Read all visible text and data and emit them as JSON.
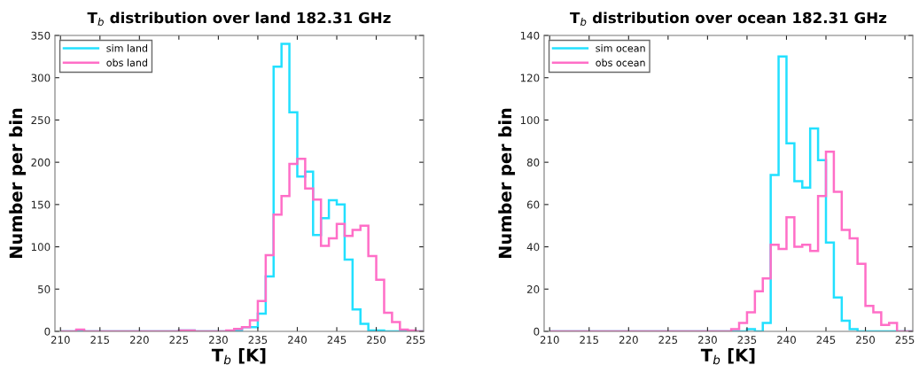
{
  "chart_data": [
    {
      "type": "histogram",
      "title": "T$_{b}$ distribution over land 182.31 GHz",
      "xlabel": "T$_{b}$ [K]",
      "ylabel": "Number per bin",
      "bins": [
        210,
        211,
        212,
        213,
        214,
        215,
        216,
        217,
        218,
        219,
        220,
        221,
        222,
        223,
        224,
        225,
        226,
        227,
        228,
        229,
        230,
        231,
        232,
        233,
        234,
        235,
        236,
        237,
        238,
        239,
        240,
        241,
        242,
        243,
        244,
        245,
        246,
        247,
        248,
        249,
        250,
        251,
        252,
        253,
        254,
        255,
        256
      ],
      "series": [
        {
          "name": "sim land",
          "color": "#22e0ff",
          "values": [
            0,
            0,
            1,
            0,
            0,
            0,
            0,
            0,
            0,
            0,
            0,
            0,
            0,
            0,
            0,
            1,
            1,
            0,
            0,
            0,
            0,
            0,
            1,
            5,
            5,
            21,
            65,
            313,
            340,
            259,
            183,
            189,
            114,
            134,
            155,
            150,
            85,
            26,
            9,
            1,
            1,
            0,
            0,
            0,
            0,
            0
          ]
        },
        {
          "name": "obs land",
          "color": "#ff6ec7",
          "values": [
            0,
            0,
            2,
            0,
            0,
            0,
            0,
            0,
            0,
            0,
            0,
            0,
            0,
            0,
            0,
            1,
            1,
            0,
            0,
            0,
            0,
            1,
            3,
            5,
            13,
            36,
            90,
            138,
            160,
            198,
            204,
            169,
            156,
            101,
            110,
            127,
            113,
            120,
            125,
            89,
            61,
            22,
            11,
            2,
            1,
            0
          ]
        }
      ],
      "xlim": [
        209.3,
        256
      ],
      "xticks": [
        210,
        215,
        220,
        225,
        230,
        235,
        240,
        245,
        250,
        255
      ],
      "ylim": [
        0,
        350
      ],
      "yticks": [
        0,
        50,
        100,
        150,
        200,
        250,
        300,
        350
      ],
      "grid": false,
      "legend": "top left"
    },
    {
      "type": "histogram",
      "title": "T$_{b}$ distribution over ocean 182.31 GHz",
      "xlabel": "T$_{b}$ [K]",
      "ylabel": "Number per bin",
      "bins": [
        210,
        211,
        212,
        213,
        214,
        215,
        216,
        217,
        218,
        219,
        220,
        221,
        222,
        223,
        224,
        225,
        226,
        227,
        228,
        229,
        230,
        231,
        232,
        233,
        234,
        235,
        236,
        237,
        238,
        239,
        240,
        241,
        242,
        243,
        244,
        245,
        246,
        247,
        248,
        249,
        250,
        251,
        252,
        253,
        254,
        255,
        256
      ],
      "series": [
        {
          "name": "sim ocean",
          "color": "#22e0ff",
          "values": [
            0,
            0,
            0,
            0,
            0,
            0,
            0,
            0,
            0,
            0,
            0,
            0,
            0,
            0,
            0,
            0,
            0,
            0,
            0,
            0,
            0,
            0,
            0,
            0,
            0,
            1,
            0,
            4,
            74,
            130,
            89,
            71,
            68,
            96,
            81,
            42,
            16,
            5,
            1,
            0,
            0,
            0,
            0,
            0,
            0,
            0
          ]
        },
        {
          "name": "obs ocean",
          "color": "#ff6ec7",
          "values": [
            0,
            0,
            0,
            0,
            0,
            0,
            0,
            0,
            0,
            0,
            0,
            0,
            0,
            0,
            0,
            0,
            0,
            0,
            0,
            0,
            0,
            0,
            0,
            1,
            4,
            9,
            19,
            25,
            41,
            39,
            54,
            40,
            41,
            38,
            64,
            85,
            66,
            48,
            44,
            32,
            12,
            9,
            3,
            4,
            0,
            0
          ]
        }
      ],
      "xlim": [
        209.3,
        256
      ],
      "xticks": [
        210,
        215,
        220,
        225,
        230,
        235,
        240,
        245,
        250,
        255
      ],
      "ylim": [
        0,
        140
      ],
      "yticks": [
        0,
        20,
        40,
        60,
        80,
        100,
        120,
        140
      ],
      "grid": false,
      "legend": "top left"
    }
  ]
}
